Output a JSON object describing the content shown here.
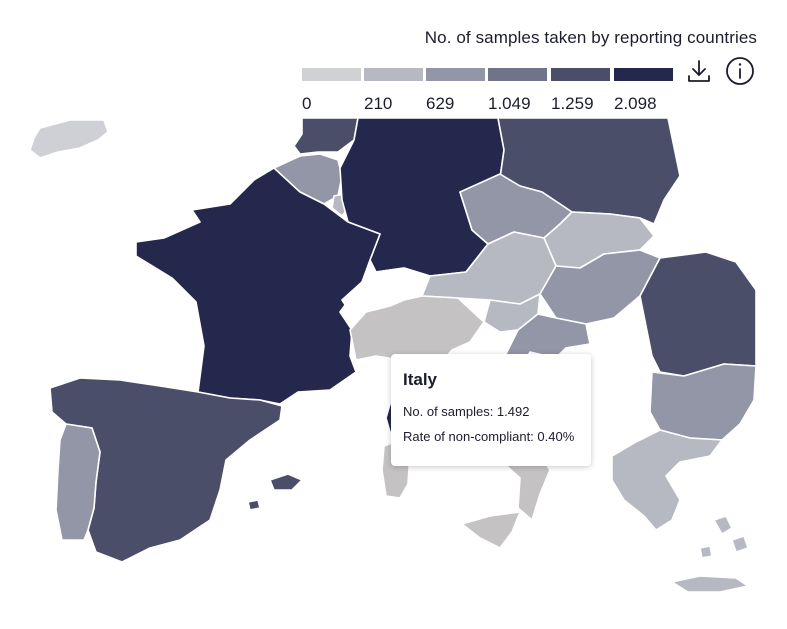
{
  "legend": {
    "title": "No. of samples taken by reporting countries",
    "breaks": [
      "0",
      "210",
      "629",
      "1.049",
      "1.259",
      "2.098"
    ],
    "colors": [
      "#d0d1d5",
      "#b6b8c2",
      "#9296a6",
      "#707489",
      "#4b4e69",
      "#23284c"
    ]
  },
  "toolbar": {
    "download_icon": "download-icon",
    "info_icon": "info-icon"
  },
  "map": {
    "colors": {
      "no_data": "#c4c2c2",
      "land_outside": "#ffffff",
      "ireland": "#cfd0d5"
    },
    "countries": [
      {
        "name": "France",
        "bin": 5
      },
      {
        "name": "Germany",
        "bin": 5
      },
      {
        "name": "Netherlands",
        "bin": 4
      },
      {
        "name": "Belgium",
        "bin": 2
      },
      {
        "name": "Luxembourg",
        "bin": 1
      },
      {
        "name": "Poland",
        "bin": 4
      },
      {
        "name": "Czechia",
        "bin": 2
      },
      {
        "name": "Slovakia",
        "bin": 1
      },
      {
        "name": "Austria",
        "bin": 1
      },
      {
        "name": "Hungary",
        "bin": 2
      },
      {
        "name": "Slovenia",
        "bin": 1
      },
      {
        "name": "Croatia",
        "bin": 2
      },
      {
        "name": "Romania",
        "bin": 4
      },
      {
        "name": "Bulgaria",
        "bin": 2
      },
      {
        "name": "Greece",
        "bin": 1
      },
      {
        "name": "Spain",
        "bin": 4
      },
      {
        "name": "Portugal",
        "bin": 2
      },
      {
        "name": "Italy",
        "bin": null
      },
      {
        "name": "Ireland",
        "bin": 0
      }
    ]
  },
  "tooltip": {
    "country": "Italy",
    "samples_label": "No. of samples: 1.492",
    "rate_label": "Rate of non-compliant: 0.40%"
  }
}
